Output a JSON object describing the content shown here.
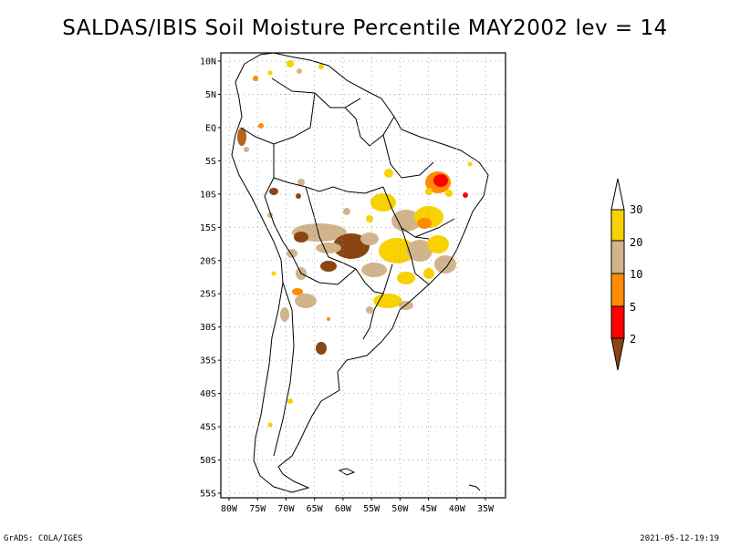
{
  "title": "SALDAS/IBIS Soil Moisture Percentile MAY2002 lev = 14",
  "axes": {
    "lat_labels": [
      "10N",
      "5N",
      "EQ",
      "5S",
      "10S",
      "15S",
      "20S",
      "25S",
      "30S",
      "35S",
      "40S",
      "45S",
      "50S",
      "55S"
    ],
    "lon_labels": [
      "80W",
      "75W",
      "70W",
      "65W",
      "60W",
      "55W",
      "50W",
      "45W",
      "40W",
      "35W"
    ]
  },
  "legend": {
    "labels": [
      "30",
      "20",
      "10",
      "5",
      "2"
    ],
    "colors": {
      "above": "#ffffff",
      "20-30": "#f8d200",
      "10-20": "#d2b48c",
      "5-10": "#ff8c00",
      "2-5": "#ff0000",
      "below2": "#8b4513"
    }
  },
  "footer": {
    "left": "GrADS: COLA/IGES",
    "right": "2021-05-12-19:19"
  }
}
